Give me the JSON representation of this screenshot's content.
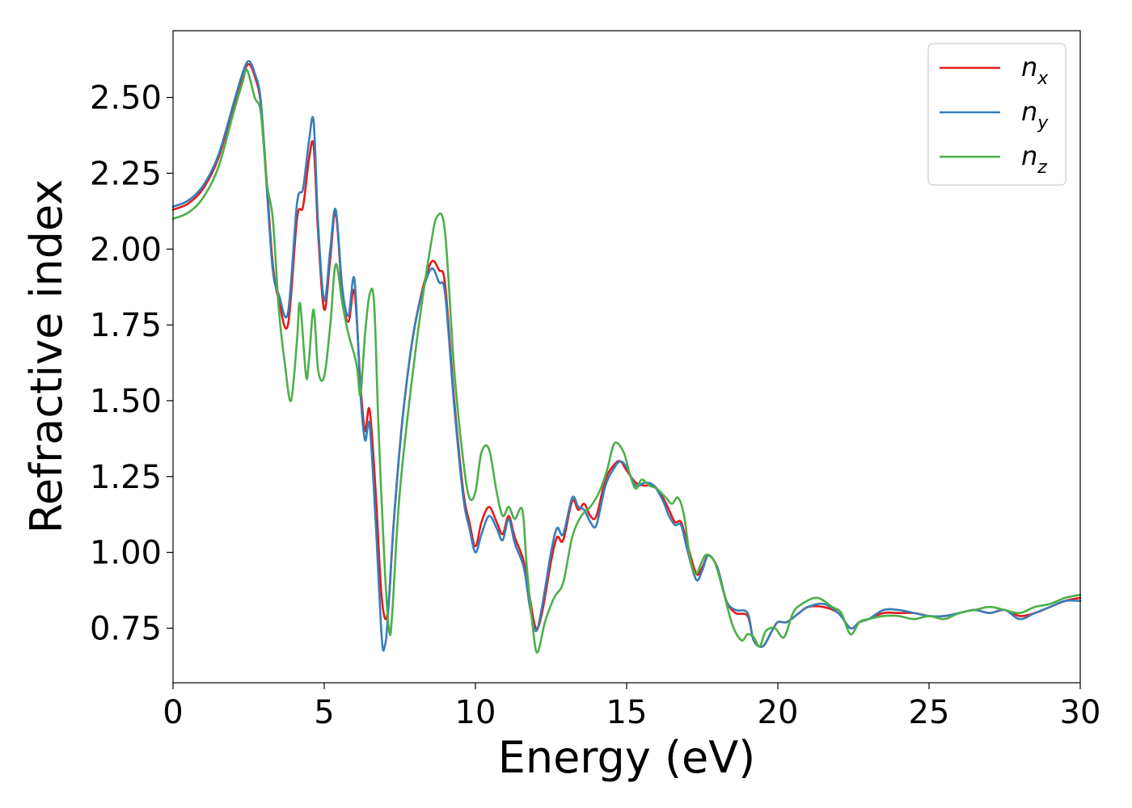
{
  "chart_data": {
    "type": "line",
    "xlabel": "Energy (eV)",
    "ylabel": "Refractive index",
    "xlim": [
      0,
      30
    ],
    "ylim": [
      0.57,
      2.72
    ],
    "xticks": [
      0,
      5,
      10,
      15,
      20,
      25,
      30
    ],
    "xtick_labels": [
      "0",
      "5",
      "10",
      "15",
      "20",
      "25",
      "30"
    ],
    "yticks": [
      0.75,
      1.0,
      1.25,
      1.5,
      1.75,
      2.0,
      2.25,
      2.5
    ],
    "ytick_labels": [
      "0.75",
      "1.00",
      "1.25",
      "1.50",
      "1.75",
      "2.00",
      "2.25",
      "2.50"
    ],
    "grid": false,
    "legend_position": "top-right",
    "series": [
      {
        "name": "n",
        "subscript": "x",
        "color": "#e41a1c",
        "x": [
          0,
          0.5,
          1,
          1.5,
          2,
          2.3,
          2.5,
          2.7,
          2.9,
          3.1,
          3.3,
          3.5,
          3.8,
          4.1,
          4.3,
          4.5,
          4.65,
          4.8,
          5.0,
          5.2,
          5.38,
          5.6,
          5.8,
          6.0,
          6.2,
          6.35,
          6.5,
          6.7,
          6.9,
          7.1,
          7.3,
          7.6,
          8.0,
          8.5,
          8.8,
          9.0,
          9.3,
          9.6,
          9.8,
          10.0,
          10.2,
          10.45,
          10.7,
          10.9,
          11.1,
          11.3,
          11.6,
          11.8,
          12.0,
          12.2,
          12.5,
          12.7,
          12.9,
          13.2,
          13.4,
          13.6,
          13.8,
          14.0,
          14.3,
          14.6,
          14.8,
          15.0,
          15.3,
          15.6,
          15.9,
          16.2,
          16.4,
          16.6,
          16.8,
          17.0,
          17.3,
          17.5,
          17.7,
          18.0,
          18.3,
          18.6,
          19.0,
          19.2,
          19.5,
          19.8,
          20.0,
          20.3,
          20.7,
          21.0,
          21.5,
          22.0,
          22.4,
          22.7,
          23.0,
          23.5,
          24.0,
          24.5,
          25.0,
          25.5,
          26.0,
          26.5,
          27.0,
          27.5,
          28.0,
          28.5,
          29.0,
          29.5,
          30.0
        ],
        "y": [
          2.13,
          2.15,
          2.2,
          2.3,
          2.47,
          2.57,
          2.61,
          2.57,
          2.48,
          2.22,
          1.95,
          1.83,
          1.75,
          2.1,
          2.14,
          2.3,
          2.34,
          2.05,
          1.8,
          1.97,
          2.12,
          1.85,
          1.76,
          1.86,
          1.55,
          1.4,
          1.47,
          1.2,
          0.85,
          0.8,
          1.1,
          1.45,
          1.75,
          1.95,
          1.93,
          1.88,
          1.5,
          1.2,
          1.1,
          1.02,
          1.1,
          1.15,
          1.1,
          1.06,
          1.12,
          1.05,
          0.97,
          0.85,
          0.75,
          0.8,
          0.97,
          1.05,
          1.04,
          1.17,
          1.14,
          1.16,
          1.12,
          1.12,
          1.24,
          1.29,
          1.3,
          1.27,
          1.23,
          1.22,
          1.22,
          1.18,
          1.14,
          1.1,
          1.1,
          1.03,
          0.93,
          0.95,
          0.99,
          0.95,
          0.84,
          0.8,
          0.79,
          0.71,
          0.69,
          0.74,
          0.77,
          0.77,
          0.8,
          0.82,
          0.82,
          0.8,
          0.75,
          0.77,
          0.78,
          0.8,
          0.8,
          0.8,
          0.79,
          0.79,
          0.8,
          0.81,
          0.8,
          0.81,
          0.79,
          0.8,
          0.82,
          0.84,
          0.85
        ]
      },
      {
        "name": "n",
        "subscript": "y",
        "color": "#377eb8",
        "x": [
          0,
          0.5,
          1,
          1.5,
          2,
          2.3,
          2.5,
          2.7,
          2.9,
          3.1,
          3.3,
          3.5,
          3.8,
          4.1,
          4.3,
          4.5,
          4.65,
          4.8,
          5.0,
          5.2,
          5.38,
          5.6,
          5.8,
          6.0,
          6.2,
          6.35,
          6.5,
          6.7,
          6.9,
          7.0,
          7.1,
          7.3,
          7.6,
          8.0,
          8.5,
          8.8,
          9.0,
          9.3,
          9.6,
          9.8,
          10.0,
          10.2,
          10.45,
          10.7,
          10.9,
          11.1,
          11.3,
          11.6,
          11.8,
          12.0,
          12.2,
          12.5,
          12.7,
          12.9,
          13.2,
          13.4,
          13.6,
          13.8,
          14.0,
          14.3,
          14.6,
          14.8,
          15.0,
          15.3,
          15.6,
          15.9,
          16.2,
          16.4,
          16.6,
          16.8,
          17.0,
          17.3,
          17.5,
          17.7,
          18.0,
          18.3,
          18.6,
          19.0,
          19.2,
          19.5,
          19.8,
          20.0,
          20.3,
          20.7,
          21.0,
          21.5,
          22.0,
          22.4,
          22.7,
          23.0,
          23.5,
          24.0,
          24.5,
          25.0,
          25.5,
          26.0,
          26.5,
          27.0,
          27.5,
          28.0,
          28.5,
          29.0,
          29.5,
          30.0
        ],
        "y": [
          2.14,
          2.16,
          2.21,
          2.31,
          2.48,
          2.58,
          2.62,
          2.58,
          2.49,
          2.2,
          1.93,
          1.85,
          1.79,
          2.15,
          2.2,
          2.36,
          2.42,
          2.08,
          1.83,
          2.0,
          2.13,
          1.87,
          1.78,
          1.9,
          1.52,
          1.37,
          1.42,
          1.1,
          0.72,
          0.69,
          0.78,
          1.1,
          1.45,
          1.75,
          1.93,
          1.89,
          1.85,
          1.48,
          1.18,
          1.08,
          1.0,
          1.06,
          1.12,
          1.08,
          1.04,
          1.11,
          1.03,
          0.95,
          0.82,
          0.74,
          0.82,
          1.0,
          1.08,
          1.06,
          1.18,
          1.15,
          1.14,
          1.1,
          1.09,
          1.22,
          1.28,
          1.3,
          1.28,
          1.22,
          1.23,
          1.22,
          1.17,
          1.12,
          1.09,
          1.09,
          1.01,
          0.91,
          0.94,
          0.99,
          0.95,
          0.84,
          0.81,
          0.8,
          0.71,
          0.69,
          0.74,
          0.77,
          0.77,
          0.8,
          0.82,
          0.83,
          0.8,
          0.75,
          0.77,
          0.78,
          0.81,
          0.81,
          0.8,
          0.79,
          0.79,
          0.8,
          0.81,
          0.8,
          0.81,
          0.78,
          0.8,
          0.82,
          0.84,
          0.84
        ]
      },
      {
        "name": "n",
        "subscript": "z",
        "color": "#4daf4a",
        "x": [
          0,
          0.5,
          1,
          1.5,
          2,
          2.3,
          2.45,
          2.7,
          2.9,
          3.1,
          3.3,
          3.5,
          3.7,
          3.9,
          4.1,
          4.2,
          4.4,
          4.5,
          4.65,
          4.8,
          5.0,
          5.2,
          5.38,
          5.6,
          5.8,
          6.0,
          6.1,
          6.2,
          6.35,
          6.5,
          6.65,
          6.8,
          7.0,
          7.15,
          7.25,
          7.5,
          8.0,
          8.5,
          8.75,
          9.0,
          9.3,
          9.6,
          9.8,
          10.0,
          10.2,
          10.45,
          10.7,
          10.9,
          11.1,
          11.3,
          11.55,
          11.7,
          11.9,
          12.05,
          12.3,
          12.6,
          12.9,
          13.2,
          13.5,
          13.8,
          14.1,
          14.35,
          14.6,
          14.9,
          15.1,
          15.3,
          15.5,
          15.75,
          16.0,
          16.3,
          16.5,
          16.7,
          16.9,
          17.1,
          17.3,
          17.6,
          17.9,
          18.2,
          18.5,
          18.8,
          19.0,
          19.2,
          19.4,
          19.6,
          19.9,
          20.2,
          20.5,
          20.8,
          21.3,
          21.8,
          22.1,
          22.4,
          22.7,
          23.0,
          23.5,
          24.0,
          24.5,
          25.0,
          25.5,
          26.0,
          26.5,
          27.0,
          27.5,
          28.0,
          28.5,
          29.0,
          29.5,
          30.0
        ],
        "y": [
          2.1,
          2.12,
          2.17,
          2.27,
          2.45,
          2.55,
          2.59,
          2.5,
          2.45,
          2.22,
          2.1,
          1.8,
          1.62,
          1.5,
          1.7,
          1.82,
          1.58,
          1.64,
          1.8,
          1.6,
          1.58,
          1.75,
          1.95,
          1.82,
          1.72,
          1.65,
          1.6,
          1.52,
          1.72,
          1.85,
          1.82,
          1.4,
          0.95,
          0.74,
          0.8,
          1.2,
          1.65,
          2.0,
          2.11,
          2.05,
          1.6,
          1.3,
          1.18,
          1.2,
          1.33,
          1.34,
          1.2,
          1.12,
          1.15,
          1.11,
          1.14,
          0.95,
          0.75,
          0.67,
          0.77,
          0.85,
          0.9,
          1.05,
          1.12,
          1.15,
          1.2,
          1.27,
          1.36,
          1.33,
          1.26,
          1.21,
          1.24,
          1.22,
          1.21,
          1.18,
          1.16,
          1.18,
          1.12,
          0.98,
          0.93,
          0.99,
          0.97,
          0.87,
          0.76,
          0.71,
          0.73,
          0.72,
          0.69,
          0.74,
          0.75,
          0.72,
          0.8,
          0.83,
          0.85,
          0.82,
          0.8,
          0.73,
          0.77,
          0.78,
          0.79,
          0.79,
          0.78,
          0.79,
          0.78,
          0.8,
          0.81,
          0.82,
          0.81,
          0.8,
          0.82,
          0.83,
          0.85,
          0.86
        ]
      }
    ]
  }
}
